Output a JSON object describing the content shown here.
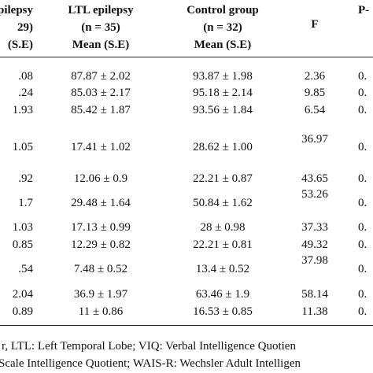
{
  "header": {
    "rows": [
      [
        "pilepsy",
        "LTL epilepsy",
        "Control group",
        "F",
        "P-"
      ],
      [
        "29)",
        "(n = 35)",
        "(n = 32)"
      ],
      [
        "(S.E)",
        "Mean (S.E)",
        "Mean (S.E)"
      ]
    ]
  },
  "table": {
    "rows": [
      [
        ".08",
        "87.87 ± 2.02",
        "93.87 ± 1.98",
        "2.36",
        "0."
      ],
      [
        ".24",
        "85.03 ± 2.17",
        "95.18 ± 2.14",
        "9.85",
        "0."
      ],
      [
        "1.93",
        "85.42 ± 1.87",
        "93.56 ± 1.84",
        "6.54",
        "0."
      ],
      [
        "1.05",
        "17.41 ± 1.02",
        "28.62 ± 1.00",
        "36.97",
        "0."
      ],
      [
        ".92",
        "12.06 ± 0.9",
        "22.21 ± 0.87",
        "43.65",
        "0."
      ],
      [
        "1.7",
        "29.48 ± 1.64",
        "50.84 ± 1.62",
        "53.26",
        "0."
      ],
      [
        "1.03",
        "17.13 ± 0.99",
        "28 ± 0.98",
        "37.33",
        "0."
      ],
      [
        "0.85",
        "12.29 ± 0.82",
        "22.21 ± 0.81",
        "49.32",
        "0."
      ],
      [
        ".54",
        "7.48 ± 0.52",
        "13.4 ± 0.52",
        "37.98",
        "0."
      ],
      [
        "2.04",
        "36.9 ± 1.97",
        "63.46 ± 1.9",
        "58.14",
        "0."
      ],
      [
        "0.89",
        "11 ± 0.86",
        "16.53 ± 0.85",
        "11.38",
        "0."
      ]
    ]
  },
  "footer": {
    "lines": [
      "r, LTL: Left Temporal Lobe; VIQ: Verbal Intelligence Quotien",
      "Scale Intelligence Quotient; WAIS-R: Wechsler Adult Intelligen"
    ]
  }
}
